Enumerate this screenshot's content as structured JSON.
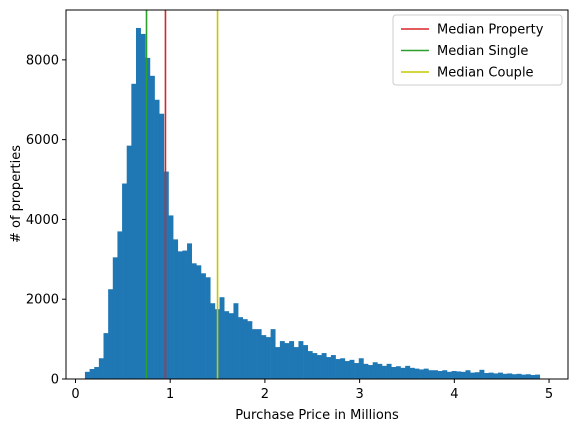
{
  "chart_data": {
    "type": "bar",
    "title": "",
    "xlabel": "Purchase Price in Millions",
    "ylabel": "# of properties",
    "xlim": [
      -0.1,
      5.2
    ],
    "ylim": [
      0,
      9250
    ],
    "xticks": [
      0,
      1,
      2,
      3,
      4,
      5
    ],
    "yticks": [
      0,
      2000,
      4000,
      6000,
      8000
    ],
    "grid": false,
    "legend_position": "top-right",
    "bar_color": "#1f77b4",
    "bin_start": 0.1,
    "bin_width": 0.049,
    "values": [
      180,
      250,
      300,
      520,
      1150,
      2250,
      3050,
      3700,
      4900,
      5850,
      7400,
      8800,
      8650,
      8050,
      7600,
      7000,
      6650,
      5200,
      4100,
      3500,
      3200,
      3220,
      3400,
      2900,
      2850,
      2650,
      2550,
      1900,
      1750,
      2050,
      1700,
      1650,
      1900,
      1550,
      1500,
      1450,
      1250,
      1250,
      1100,
      1050,
      1250,
      800,
      950,
      900,
      950,
      800,
      950,
      850,
      700,
      650,
      600,
      650,
      550,
      600,
      500,
      520,
      450,
      480,
      400,
      520,
      380,
      350,
      420,
      380,
      330,
      380,
      300,
      320,
      280,
      330,
      280,
      260,
      240,
      260,
      220,
      220,
      200,
      220,
      180,
      200,
      190,
      180,
      220,
      160,
      170,
      230,
      150,
      160,
      140,
      160,
      130,
      140,
      120,
      130,
      110,
      120,
      100,
      110
    ],
    "lines": [
      {
        "name": "Median Property",
        "x": 0.95,
        "color": "#d62728"
      },
      {
        "name": "Median Single",
        "x": 0.75,
        "color": "#2ca02c"
      },
      {
        "name": "Median Couple",
        "x": 1.5,
        "color": "#c8c800"
      }
    ]
  }
}
